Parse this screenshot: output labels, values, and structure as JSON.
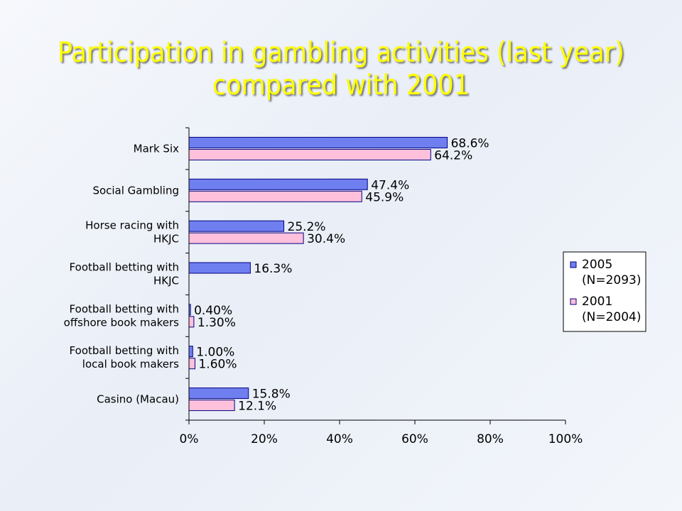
{
  "slide": {
    "title_line1": "Participation in gambling activities (last year)",
    "title_line2": "compared with 2001"
  },
  "colors": {
    "title": "#ffff00",
    "series_2005": "#6f7ff0",
    "series_2001": "#ffc0dc",
    "bar_border": "#000080"
  },
  "chart_data": {
    "type": "bar",
    "orientation": "horizontal",
    "categories": [
      [
        "Mark Six"
      ],
      [
        "Social Gambling"
      ],
      [
        "Horse racing with",
        "HKJC"
      ],
      [
        "Football betting with",
        "HKJC"
      ],
      [
        "Football betting with",
        "offshore book makers"
      ],
      [
        "Football betting with",
        "local book makers"
      ],
      [
        "Casino (Macau)"
      ]
    ],
    "series": [
      {
        "name": [
          "2005",
          "(N=2093)"
        ],
        "values": [
          68.6,
          47.4,
          25.2,
          16.3,
          0.4,
          1.0,
          15.8
        ],
        "labels": [
          "68.6%",
          "47.4%",
          "25.2%",
          "16.3%",
          "0.40%",
          "1.00%",
          "15.8%"
        ]
      },
      {
        "name": [
          "2001",
          "(N=2004)"
        ],
        "values": [
          64.2,
          45.9,
          30.4,
          null,
          1.3,
          1.6,
          12.1
        ],
        "labels": [
          "64.2%",
          "45.9%",
          "30.4%",
          null,
          "1.30%",
          "1.60%",
          "12.1%"
        ]
      }
    ],
    "xlim": [
      0,
      100
    ],
    "xticks": [
      "0%",
      "20%",
      "40%",
      "60%",
      "80%",
      "100%"
    ],
    "legend_position": "right",
    "grid": false
  }
}
